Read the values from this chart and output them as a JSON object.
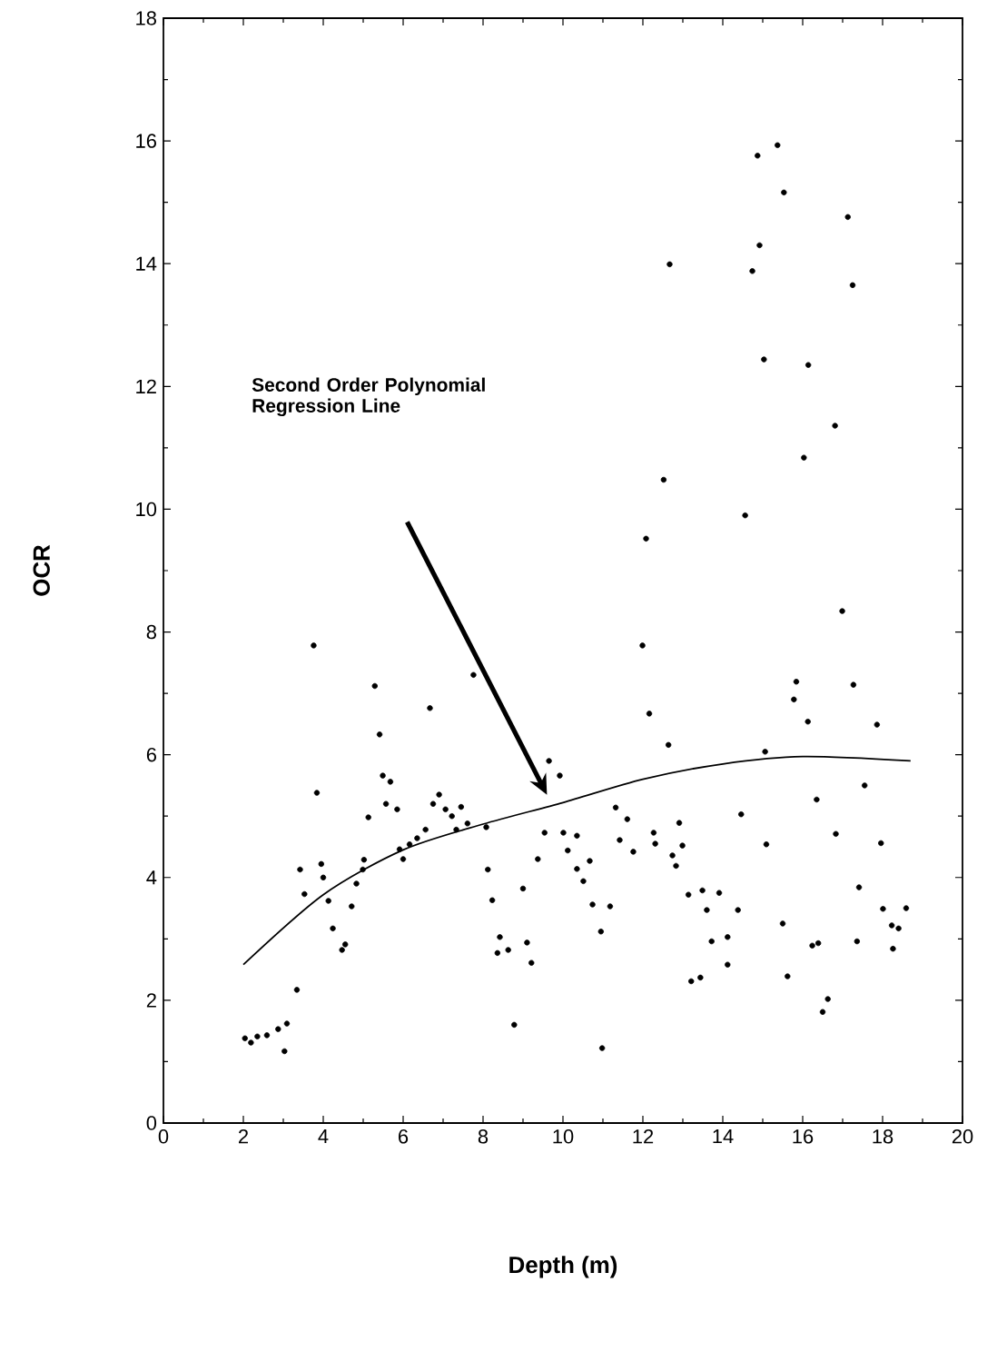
{
  "chart_data": {
    "type": "scatter",
    "xlabel": "Depth (m)",
    "ylabel": "OCR",
    "xlim": [
      0,
      20
    ],
    "ylim": [
      0,
      18
    ],
    "xticks": [
      0,
      2,
      4,
      6,
      8,
      10,
      12,
      14,
      16,
      18,
      20
    ],
    "yticks": [
      0,
      2,
      4,
      6,
      8,
      10,
      12,
      14,
      16,
      18
    ],
    "grid": false,
    "annotations": [
      "Second Order Polynomial Regression Line"
    ],
    "series": [
      {
        "color": "#000000",
        "marker": "circle",
        "x": [
          2.04,
          2.19,
          2.35,
          2.59,
          2.87,
          3.09,
          3.34,
          3.03,
          3.76,
          3.84,
          3.42,
          3.53,
          3.95,
          4.0,
          4.13,
          4.24,
          4.55,
          4.47,
          4.71,
          4.83,
          4.99,
          5.02,
          5.13,
          5.29,
          5.41,
          5.49,
          5.68,
          5.57,
          5.85,
          5.91,
          6.0,
          6.16,
          6.35,
          6.56,
          6.67,
          6.75,
          6.9,
          7.06,
          7.22,
          7.45,
          7.33,
          7.61,
          7.76,
          8.08,
          8.12,
          8.23,
          8.42,
          8.36,
          8.63,
          9.1,
          9.21,
          8.78,
          9.0,
          9.37,
          9.54,
          9.65,
          9.92,
          10.01,
          10.35,
          10.12,
          10.67,
          10.35,
          10.51,
          10.74,
          11.18,
          10.95,
          10.98,
          11.99,
          12.16,
          12.64,
          11.32,
          11.61,
          11.42,
          11.76,
          12.27,
          12.31,
          12.91,
          12.74,
          12.83,
          12.99,
          13.14,
          13.49,
          13.91,
          13.6,
          14.38,
          13.72,
          14.12,
          14.12,
          13.21,
          13.44,
          14.46,
          15.09,
          15.06,
          15.5,
          15.62,
          16.24,
          16.39,
          16.63,
          16.5,
          16.35,
          16.83,
          17.36,
          17.41,
          15.84,
          15.78,
          16.13,
          17.27,
          16.99,
          17.86,
          17.55,
          17.96,
          18.01,
          18.23,
          18.4,
          18.26,
          18.59,
          15.37,
          14.87,
          15.53,
          17.13,
          14.92,
          12.67,
          14.74,
          17.25,
          15.03,
          16.14,
          16.81,
          16.03,
          12.52,
          14.56,
          12.08
        ],
        "values": [
          1.38,
          1.31,
          1.41,
          1.43,
          1.53,
          1.62,
          2.17,
          1.17,
          7.78,
          5.38,
          4.13,
          3.73,
          4.22,
          4.0,
          3.62,
          3.17,
          2.91,
          2.82,
          3.53,
          3.9,
          4.13,
          4.29,
          4.98,
          7.12,
          6.33,
          5.66,
          5.56,
          5.2,
          5.11,
          4.46,
          4.3,
          4.54,
          4.64,
          4.78,
          6.76,
          5.2,
          5.35,
          5.11,
          5.0,
          5.15,
          4.78,
          4.88,
          7.3,
          4.82,
          4.13,
          3.63,
          3.03,
          2.77,
          2.82,
          2.94,
          2.61,
          1.6,
          3.82,
          4.3,
          4.73,
          5.9,
          5.66,
          4.73,
          4.68,
          4.44,
          4.27,
          4.14,
          3.94,
          3.56,
          3.53,
          3.12,
          1.22,
          7.78,
          6.67,
          6.16,
          5.14,
          4.95,
          4.61,
          4.42,
          4.73,
          4.55,
          4.89,
          4.36,
          4.19,
          4.52,
          3.72,
          3.79,
          3.75,
          3.47,
          3.47,
          2.96,
          3.03,
          2.58,
          2.31,
          2.37,
          5.03,
          4.54,
          6.05,
          3.25,
          2.39,
          2.89,
          2.93,
          2.02,
          1.81,
          5.27,
          4.71,
          2.96,
          3.84,
          7.19,
          6.9,
          6.54,
          7.14,
          8.34,
          6.49,
          5.5,
          4.56,
          3.49,
          3.22,
          3.17,
          2.84,
          3.5,
          15.93,
          15.76,
          15.16,
          14.76,
          14.3,
          13.99,
          13.88,
          13.65,
          12.44,
          12.35,
          11.36,
          10.84,
          10.48,
          9.9,
          9.52
        ]
      },
      {
        "type": "line",
        "color": "#000000",
        "marker": "none",
        "line_style": "solid",
        "x": [
          2,
          4,
          6,
          8,
          10,
          12,
          14,
          16,
          18.7
        ],
        "values": [
          2.58,
          3.72,
          4.45,
          4.87,
          5.22,
          5.6,
          5.85,
          5.97,
          5.9
        ]
      }
    ]
  }
}
